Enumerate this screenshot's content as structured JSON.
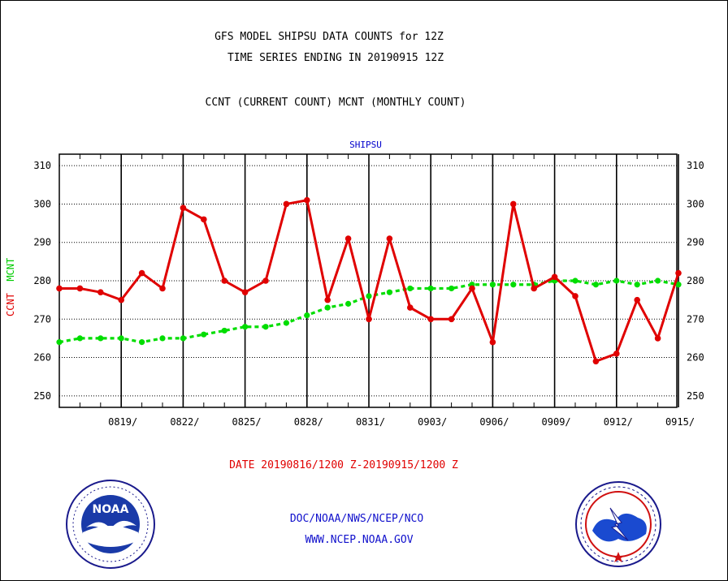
{
  "header": {
    "title_line1": "GFS MODEL SHIPSU DATA COUNTS for 12Z",
    "title_line2": "TIME SERIES ENDING IN 20190915 12Z",
    "subtitle": "CCNT (CURRENT COUNT) MCNT (MONTHLY COUNT)",
    "plot_label": "SHIPSU"
  },
  "axis": {
    "ylabel_ccnt": "CCNT",
    "ylabel_mcnt": "MCNT",
    "date_range": "DATE 20190816/1200 Z-20190915/1200 Z"
  },
  "footer": {
    "line1": "DOC/NOAA/NWS/NCEP/NCO",
    "line2": "WWW.NCEP.NOAA.GOV"
  },
  "logos": {
    "left": "NOAA",
    "right_icon": "national-weather-service-logo"
  },
  "colors": {
    "ccnt": "#e00000",
    "mcnt": "#00dd00",
    "text_blue": "#1010cc"
  },
  "chart_data": {
    "type": "line",
    "x": [
      "0816",
      "0817",
      "0818",
      "0819",
      "0820",
      "0821",
      "0822",
      "0823",
      "0824",
      "0825",
      "0826",
      "0827",
      "0828",
      "0829",
      "0830",
      "0831",
      "0901",
      "0902",
      "0903",
      "0904",
      "0905",
      "0906",
      "0907",
      "0908",
      "0909",
      "0910",
      "0911",
      "0912",
      "0913",
      "0914",
      "0915"
    ],
    "x_ticks": [
      "0819/",
      "0822/",
      "0825/",
      "0828/",
      "0831/",
      "0903/",
      "0906/",
      "0909/",
      "0912/",
      "0915/"
    ],
    "y_ticks": [
      250,
      260,
      270,
      280,
      290,
      300,
      310
    ],
    "ylim": [
      247,
      313
    ],
    "grid": true,
    "series": [
      {
        "name": "CCNT",
        "values": [
          278,
          278,
          277,
          275,
          282,
          278,
          299,
          296,
          280,
          277,
          280,
          300,
          301,
          275,
          291,
          270,
          291,
          273,
          270,
          270,
          278,
          264,
          300,
          278,
          281,
          276,
          259,
          261,
          275,
          265,
          282
        ]
      },
      {
        "name": "MCNT",
        "values": [
          264,
          265,
          265,
          265,
          264,
          265,
          265,
          266,
          267,
          268,
          268,
          269,
          271,
          273,
          274,
          276,
          277,
          278,
          278,
          278,
          279,
          279,
          279,
          279,
          280,
          280,
          279,
          280,
          279,
          280,
          279
        ]
      }
    ]
  }
}
